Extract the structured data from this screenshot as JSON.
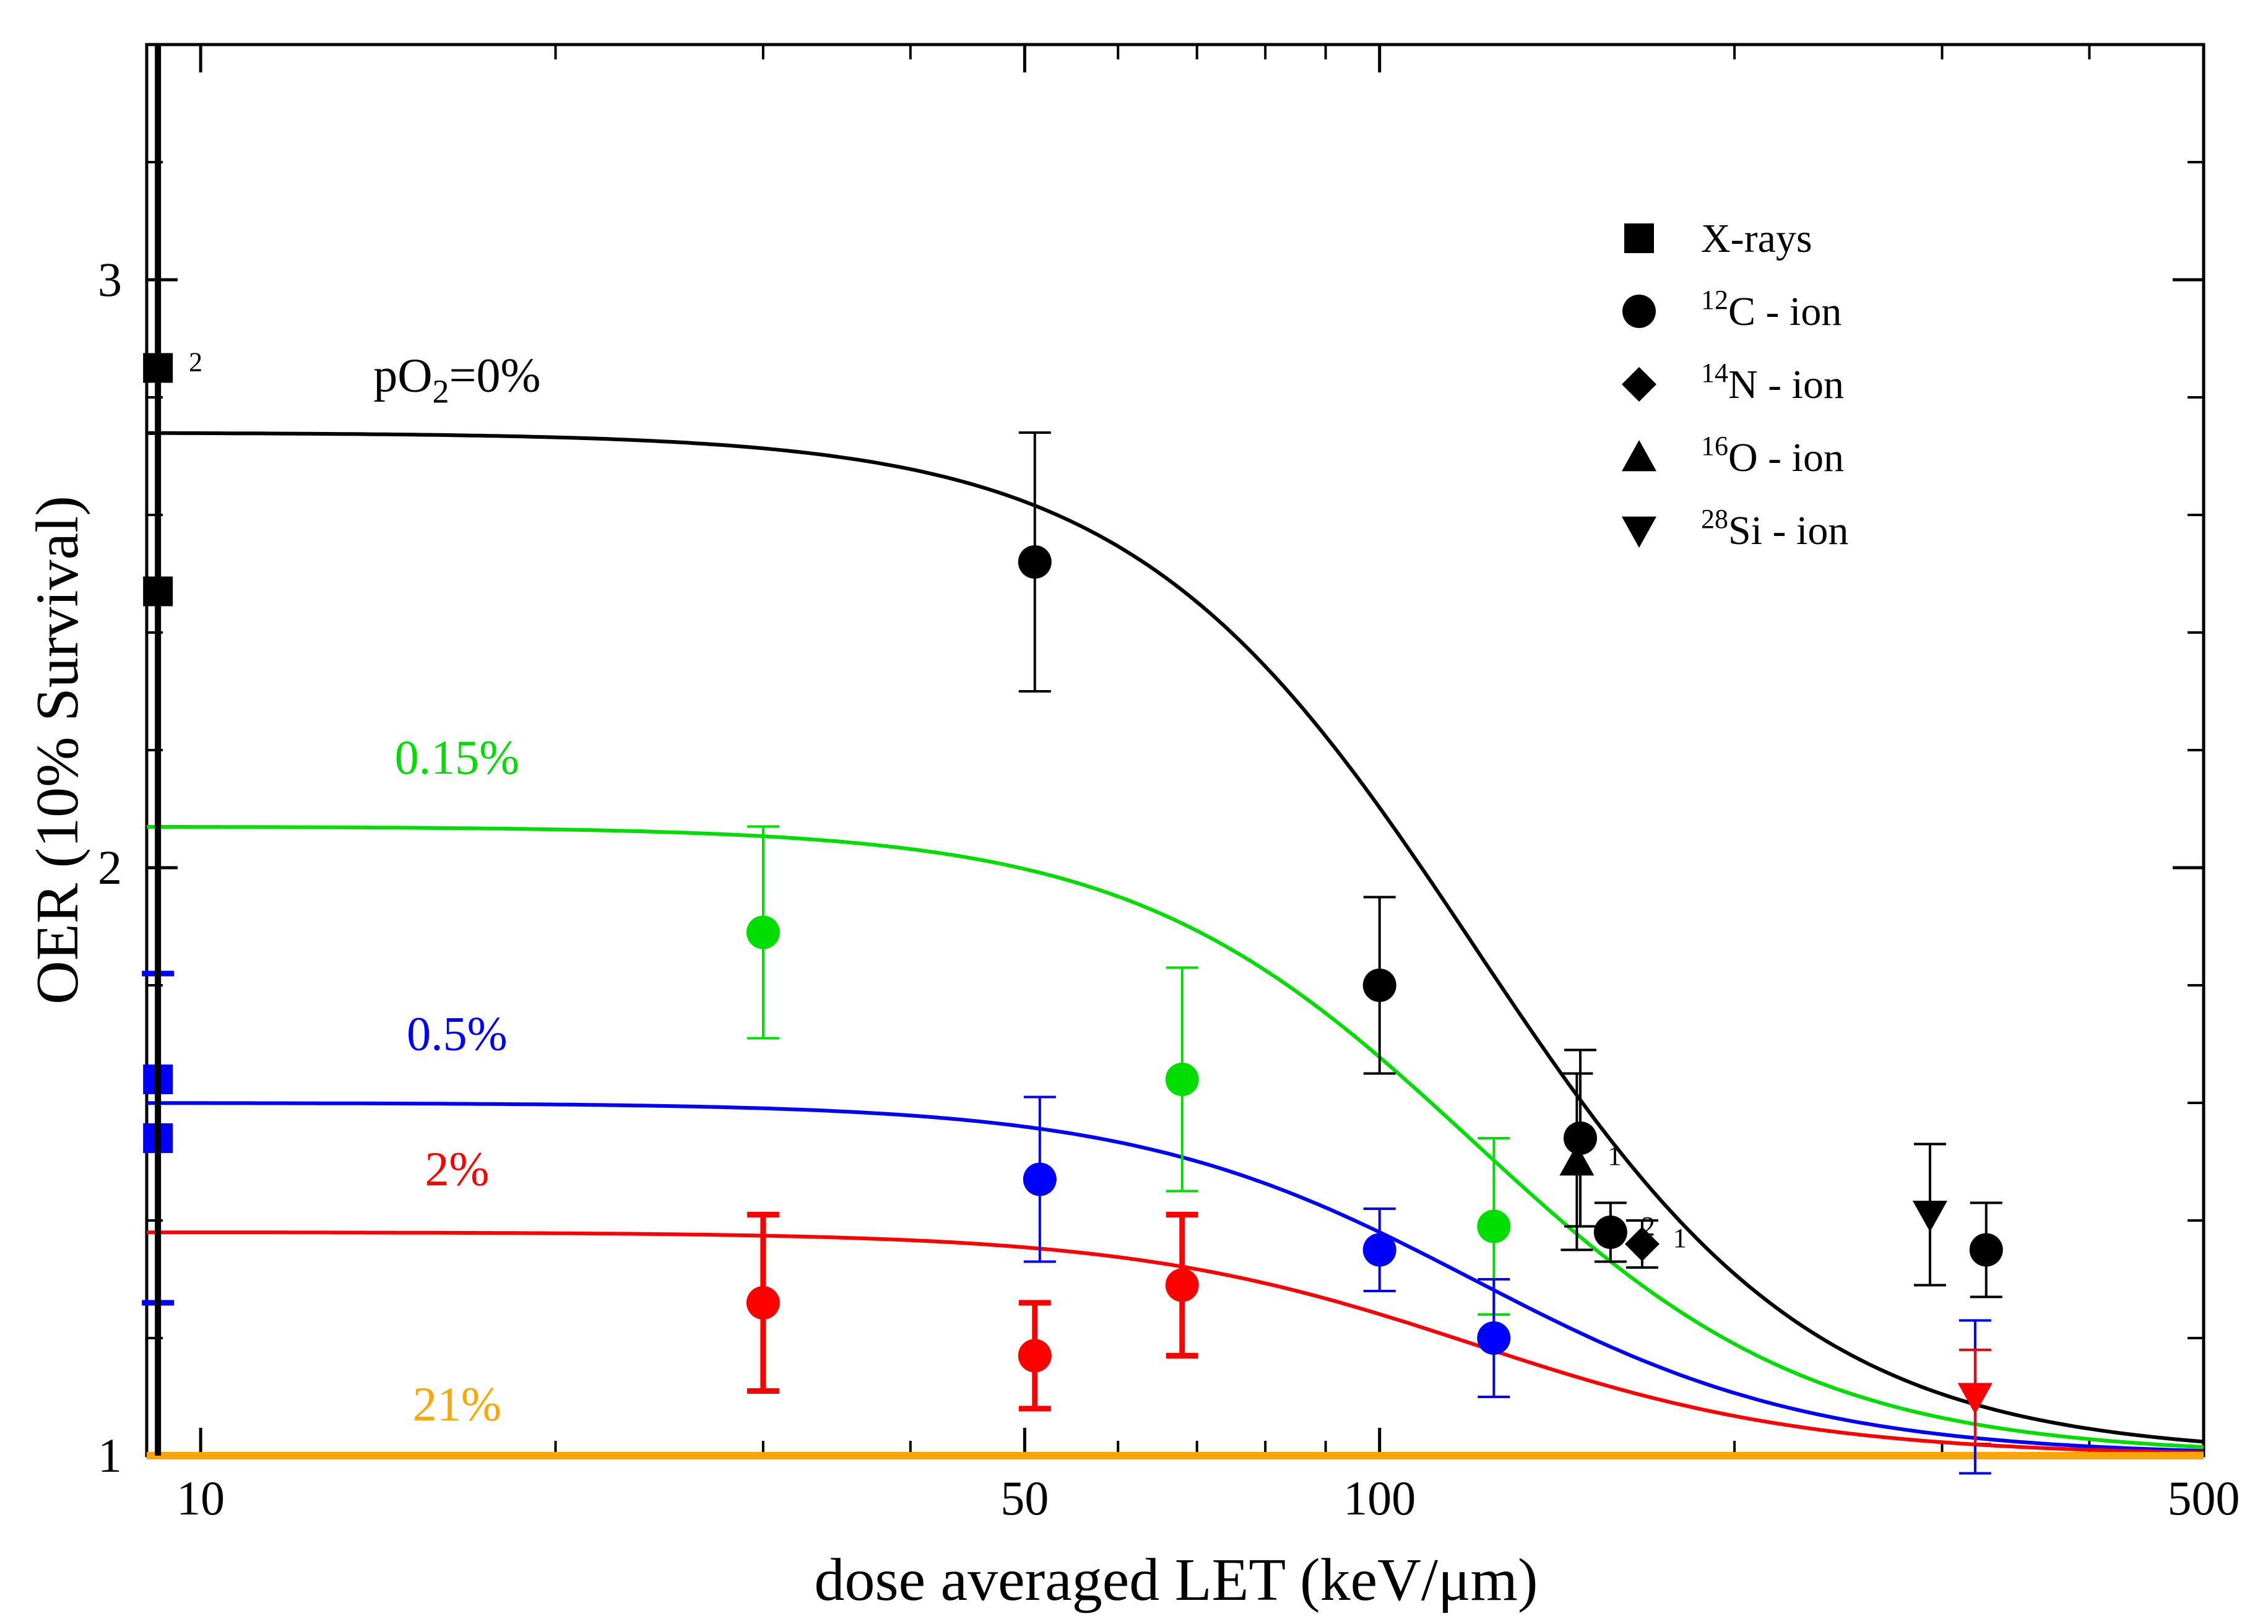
{
  "chart_data": {
    "type": "scatter",
    "xlabel": "dose averaged LET (keV/μm)",
    "ylabel": "OER (10% Survival)",
    "xscale": "log",
    "xlim": [
      9,
      500
    ],
    "ylim": [
      1,
      3.4
    ],
    "x_tick_labels": [
      "10",
      "50",
      "100",
      "500"
    ],
    "y_tick_labels": [
      "1",
      "2",
      "3"
    ],
    "legend": {
      "placement": "top-right",
      "entries": [
        {
          "marker": "square",
          "sup": "",
          "text": "X-rays"
        },
        {
          "marker": "circle",
          "sup": "12",
          "text": "C - ion"
        },
        {
          "marker": "diamond",
          "sup": "14",
          "text": "N - ion"
        },
        {
          "marker": "triangle-up",
          "sup": "16",
          "text": "O - ion"
        },
        {
          "marker": "triangle-down",
          "sup": "28",
          "text": "Si - ion"
        }
      ]
    },
    "curves": [
      {
        "name": "pO2=0%",
        "label_main": "pO",
        "label_sub": "2",
        "label_rest": "=0%",
        "color": "#000000",
        "oer_max": 2.74,
        "label_x": 16.5,
        "label_y": 2.81
      },
      {
        "name": "0.15%",
        "label_main": "0.15%",
        "label_sub": "",
        "label_rest": "",
        "color": "#00dd00",
        "oer_max": 2.07,
        "label_x": 16.5,
        "label_y": 2.16
      },
      {
        "name": "0.5%",
        "label_main": "0.5%",
        "label_sub": "",
        "label_rest": "",
        "color": "#0000ff",
        "oer_max": 1.6,
        "label_x": 16.5,
        "label_y": 1.69
      },
      {
        "name": "2%",
        "label_main": "2%",
        "label_sub": "",
        "label_rest": "",
        "color": "#ff0000",
        "oer_max": 1.38,
        "label_x": 16.5,
        "label_y": 1.46
      },
      {
        "name": "21%",
        "label_main": "21%",
        "label_sub": "",
        "label_rest": "",
        "color": "#ffa500",
        "oer_max": 1.0,
        "label_x": 16.5,
        "label_y": 1.06
      }
    ],
    "series": [
      {
        "name": "0% points",
        "color": "#000000",
        "points": [
          {
            "x": 9.2,
            "y": 2.85,
            "err": 0,
            "marker": "square",
            "note": "2"
          },
          {
            "x": 9.2,
            "y": 2.47,
            "err": 0,
            "marker": "square",
            "note": ""
          },
          {
            "x": 51,
            "y": 2.52,
            "err": 0.22,
            "marker": "circle",
            "note": ""
          },
          {
            "x": 100,
            "y": 1.8,
            "err": 0.15,
            "marker": "circle",
            "note": ""
          },
          {
            "x": 147,
            "y": 1.5,
            "err": 0.15,
            "marker": "triangle-up",
            "note": "1"
          },
          {
            "x": 148,
            "y": 1.54,
            "err": 0.15,
            "marker": "circle",
            "note": ""
          },
          {
            "x": 157,
            "y": 1.38,
            "err": 0.05,
            "marker": "circle",
            "note": "2"
          },
          {
            "x": 167,
            "y": 1.36,
            "err": 0.04,
            "marker": "diamond",
            "note": "1"
          },
          {
            "x": 293,
            "y": 1.41,
            "err": 0.12,
            "marker": "triangle-down",
            "note": ""
          },
          {
            "x": 327,
            "y": 1.35,
            "err": 0.08,
            "marker": "circle",
            "note": ""
          }
        ]
      },
      {
        "name": "0.15% points",
        "color": "#00dd00",
        "points": [
          {
            "x": 30,
            "y": 1.89,
            "err": 0.18,
            "marker": "circle",
            "note": ""
          },
          {
            "x": 68,
            "y": 1.64,
            "err": 0.19,
            "marker": "circle",
            "note": ""
          },
          {
            "x": 125,
            "y": 1.39,
            "err": 0.15,
            "marker": "circle",
            "note": ""
          }
        ]
      },
      {
        "name": "0.5% points",
        "color": "#0000ff",
        "points": [
          {
            "x": 9.2,
            "y": 1.64,
            "err": 0,
            "marker": "square",
            "note": ""
          },
          {
            "x": 9.2,
            "y": 1.54,
            "err": 0.28,
            "marker": "square",
            "note": ""
          },
          {
            "x": 51.5,
            "y": 1.47,
            "err": 0.14,
            "marker": "circle",
            "note": ""
          },
          {
            "x": 100,
            "y": 1.35,
            "err": 0.07,
            "marker": "circle",
            "note": ""
          },
          {
            "x": 125,
            "y": 1.2,
            "err": 0.1,
            "marker": "circle",
            "note": ""
          },
          {
            "x": 320,
            "y": 1.1,
            "err": 0.13,
            "marker": "triangle-down",
            "note": ""
          }
        ]
      },
      {
        "name": "2% points",
        "color": "#ff0000",
        "points": [
          {
            "x": 30,
            "y": 1.26,
            "err": 0.15,
            "marker": "circle",
            "note": ""
          },
          {
            "x": 51,
            "y": 1.17,
            "err": 0.09,
            "marker": "circle",
            "note": ""
          },
          {
            "x": 68,
            "y": 1.29,
            "err": 0.12,
            "marker": "circle",
            "note": ""
          },
          {
            "x": 320,
            "y": 1.1,
            "err": 0.08,
            "marker": "triangle-down",
            "note": ""
          }
        ]
      }
    ]
  }
}
